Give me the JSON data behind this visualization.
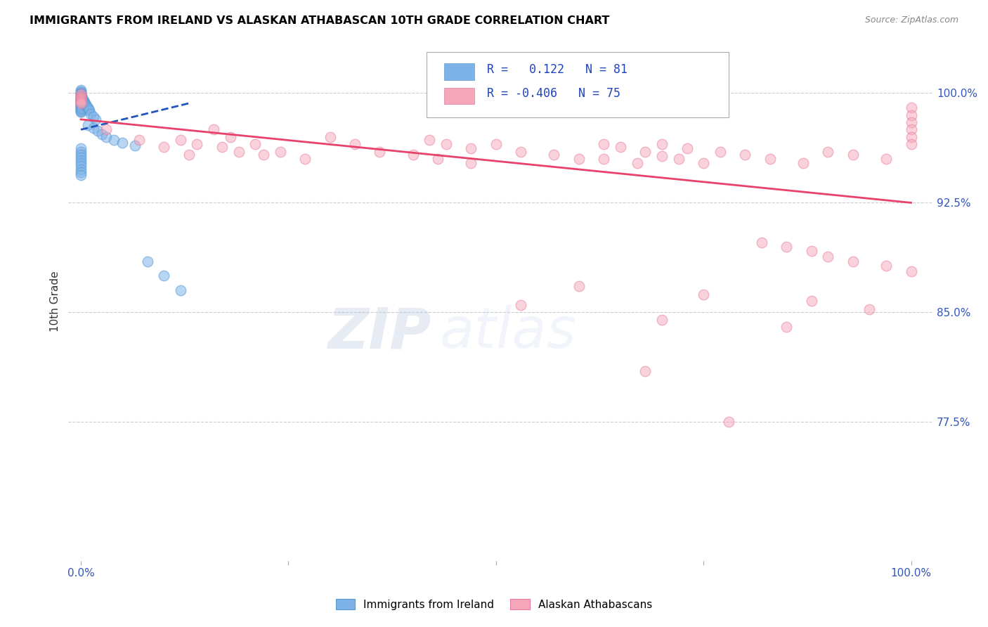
{
  "title": "IMMIGRANTS FROM IRELAND VS ALASKAN ATHABASCAN 10TH GRADE CORRELATION CHART",
  "source": "Source: ZipAtlas.com",
  "ylabel": "10th Grade",
  "ytick_labels": [
    "100.0%",
    "92.5%",
    "85.0%",
    "77.5%"
  ],
  "ytick_values": [
    1.0,
    0.925,
    0.85,
    0.775
  ],
  "xlim": [
    0.0,
    1.0
  ],
  "ylim": [
    0.68,
    1.035
  ],
  "blue_color": "#7EB3E8",
  "blue_edge": "#5B9BD5",
  "pink_color": "#F4A7B9",
  "pink_edge": "#E87CA0",
  "trend_blue": "#2255BB",
  "trend_pink": "#E8426A",
  "watermark_zip": "ZIP",
  "watermark_atlas": "atlas",
  "blue_x": [
    0.0,
    0.0,
    0.0,
    0.0,
    0.0,
    0.0,
    0.0,
    0.0,
    0.0,
    0.0,
    0.0,
    0.0,
    0.0,
    0.0,
    0.0,
    0.0,
    0.0,
    0.0,
    0.0,
    0.0,
    0.0,
    0.0,
    0.0,
    0.0,
    0.0,
    0.0,
    0.0,
    0.0,
    0.0,
    0.0,
    0.001,
    0.001,
    0.001,
    0.001,
    0.001,
    0.001,
    0.001,
    0.001,
    0.001,
    0.001,
    0.002,
    0.002,
    0.002,
    0.002,
    0.002,
    0.003,
    0.003,
    0.003,
    0.004,
    0.004,
    0.005,
    0.005,
    0.006,
    0.007,
    0.008,
    0.009,
    0.01,
    0.012,
    0.015,
    0.018,
    0.008,
    0.015,
    0.02,
    0.025,
    0.03,
    0.04,
    0.05,
    0.065,
    0.08,
    0.1,
    0.12,
    0.0,
    0.0,
    0.0,
    0.0,
    0.0,
    0.0,
    0.0,
    0.0,
    0.0,
    0.0
  ],
  "blue_y": [
    1.002,
    1.001,
    1.0,
    1.0,
    0.999,
    0.999,
    0.998,
    0.998,
    0.997,
    0.997,
    0.996,
    0.996,
    0.995,
    0.995,
    0.994,
    0.994,
    0.993,
    0.993,
    0.992,
    0.992,
    0.991,
    0.991,
    0.99,
    0.99,
    0.989,
    0.989,
    0.988,
    0.988,
    0.987,
    0.987,
    0.998,
    0.997,
    0.996,
    0.995,
    0.994,
    0.993,
    0.992,
    0.991,
    0.99,
    0.989,
    0.997,
    0.996,
    0.995,
    0.994,
    0.993,
    0.995,
    0.994,
    0.993,
    0.994,
    0.993,
    0.993,
    0.992,
    0.992,
    0.991,
    0.99,
    0.989,
    0.988,
    0.986,
    0.984,
    0.982,
    0.978,
    0.976,
    0.974,
    0.972,
    0.97,
    0.968,
    0.966,
    0.964,
    0.885,
    0.875,
    0.865,
    0.962,
    0.96,
    0.958,
    0.956,
    0.954,
    0.952,
    0.95,
    0.948,
    0.946,
    0.944
  ],
  "pink_x": [
    0.0,
    0.0,
    0.0,
    0.0,
    0.0,
    0.0,
    0.0,
    0.03,
    0.07,
    0.1,
    0.13,
    0.16,
    0.18,
    0.21,
    0.24,
    0.27,
    0.3,
    0.33,
    0.36,
    0.4,
    0.43,
    0.47,
    0.5,
    0.53,
    0.57,
    0.6,
    0.63,
    0.67,
    0.7,
    0.73,
    0.77,
    0.8,
    0.83,
    0.87,
    0.9,
    0.93,
    0.97,
    1.0,
    1.0,
    1.0,
    1.0,
    1.0,
    1.0,
    0.12,
    0.14,
    0.17,
    0.19,
    0.22,
    0.42,
    0.44,
    0.47,
    0.63,
    0.65,
    0.68,
    0.7,
    0.72,
    0.75,
    0.82,
    0.85,
    0.88,
    0.9,
    0.93,
    0.97,
    1.0,
    0.53,
    0.7,
    0.85,
    0.6,
    0.75,
    0.88,
    0.95,
    0.78,
    0.68
  ],
  "pink_y": [
    0.999,
    0.998,
    0.997,
    0.996,
    0.995,
    0.994,
    0.993,
    0.975,
    0.968,
    0.963,
    0.958,
    0.975,
    0.97,
    0.965,
    0.96,
    0.955,
    0.97,
    0.965,
    0.96,
    0.958,
    0.955,
    0.952,
    0.965,
    0.96,
    0.958,
    0.955,
    0.955,
    0.952,
    0.965,
    0.962,
    0.96,
    0.958,
    0.955,
    0.952,
    0.96,
    0.958,
    0.955,
    0.99,
    0.985,
    0.98,
    0.975,
    0.97,
    0.965,
    0.968,
    0.965,
    0.963,
    0.96,
    0.958,
    0.968,
    0.965,
    0.962,
    0.965,
    0.963,
    0.96,
    0.957,
    0.955,
    0.952,
    0.898,
    0.895,
    0.892,
    0.888,
    0.885,
    0.882,
    0.878,
    0.855,
    0.845,
    0.84,
    0.868,
    0.862,
    0.858,
    0.852,
    0.775,
    0.81
  ]
}
